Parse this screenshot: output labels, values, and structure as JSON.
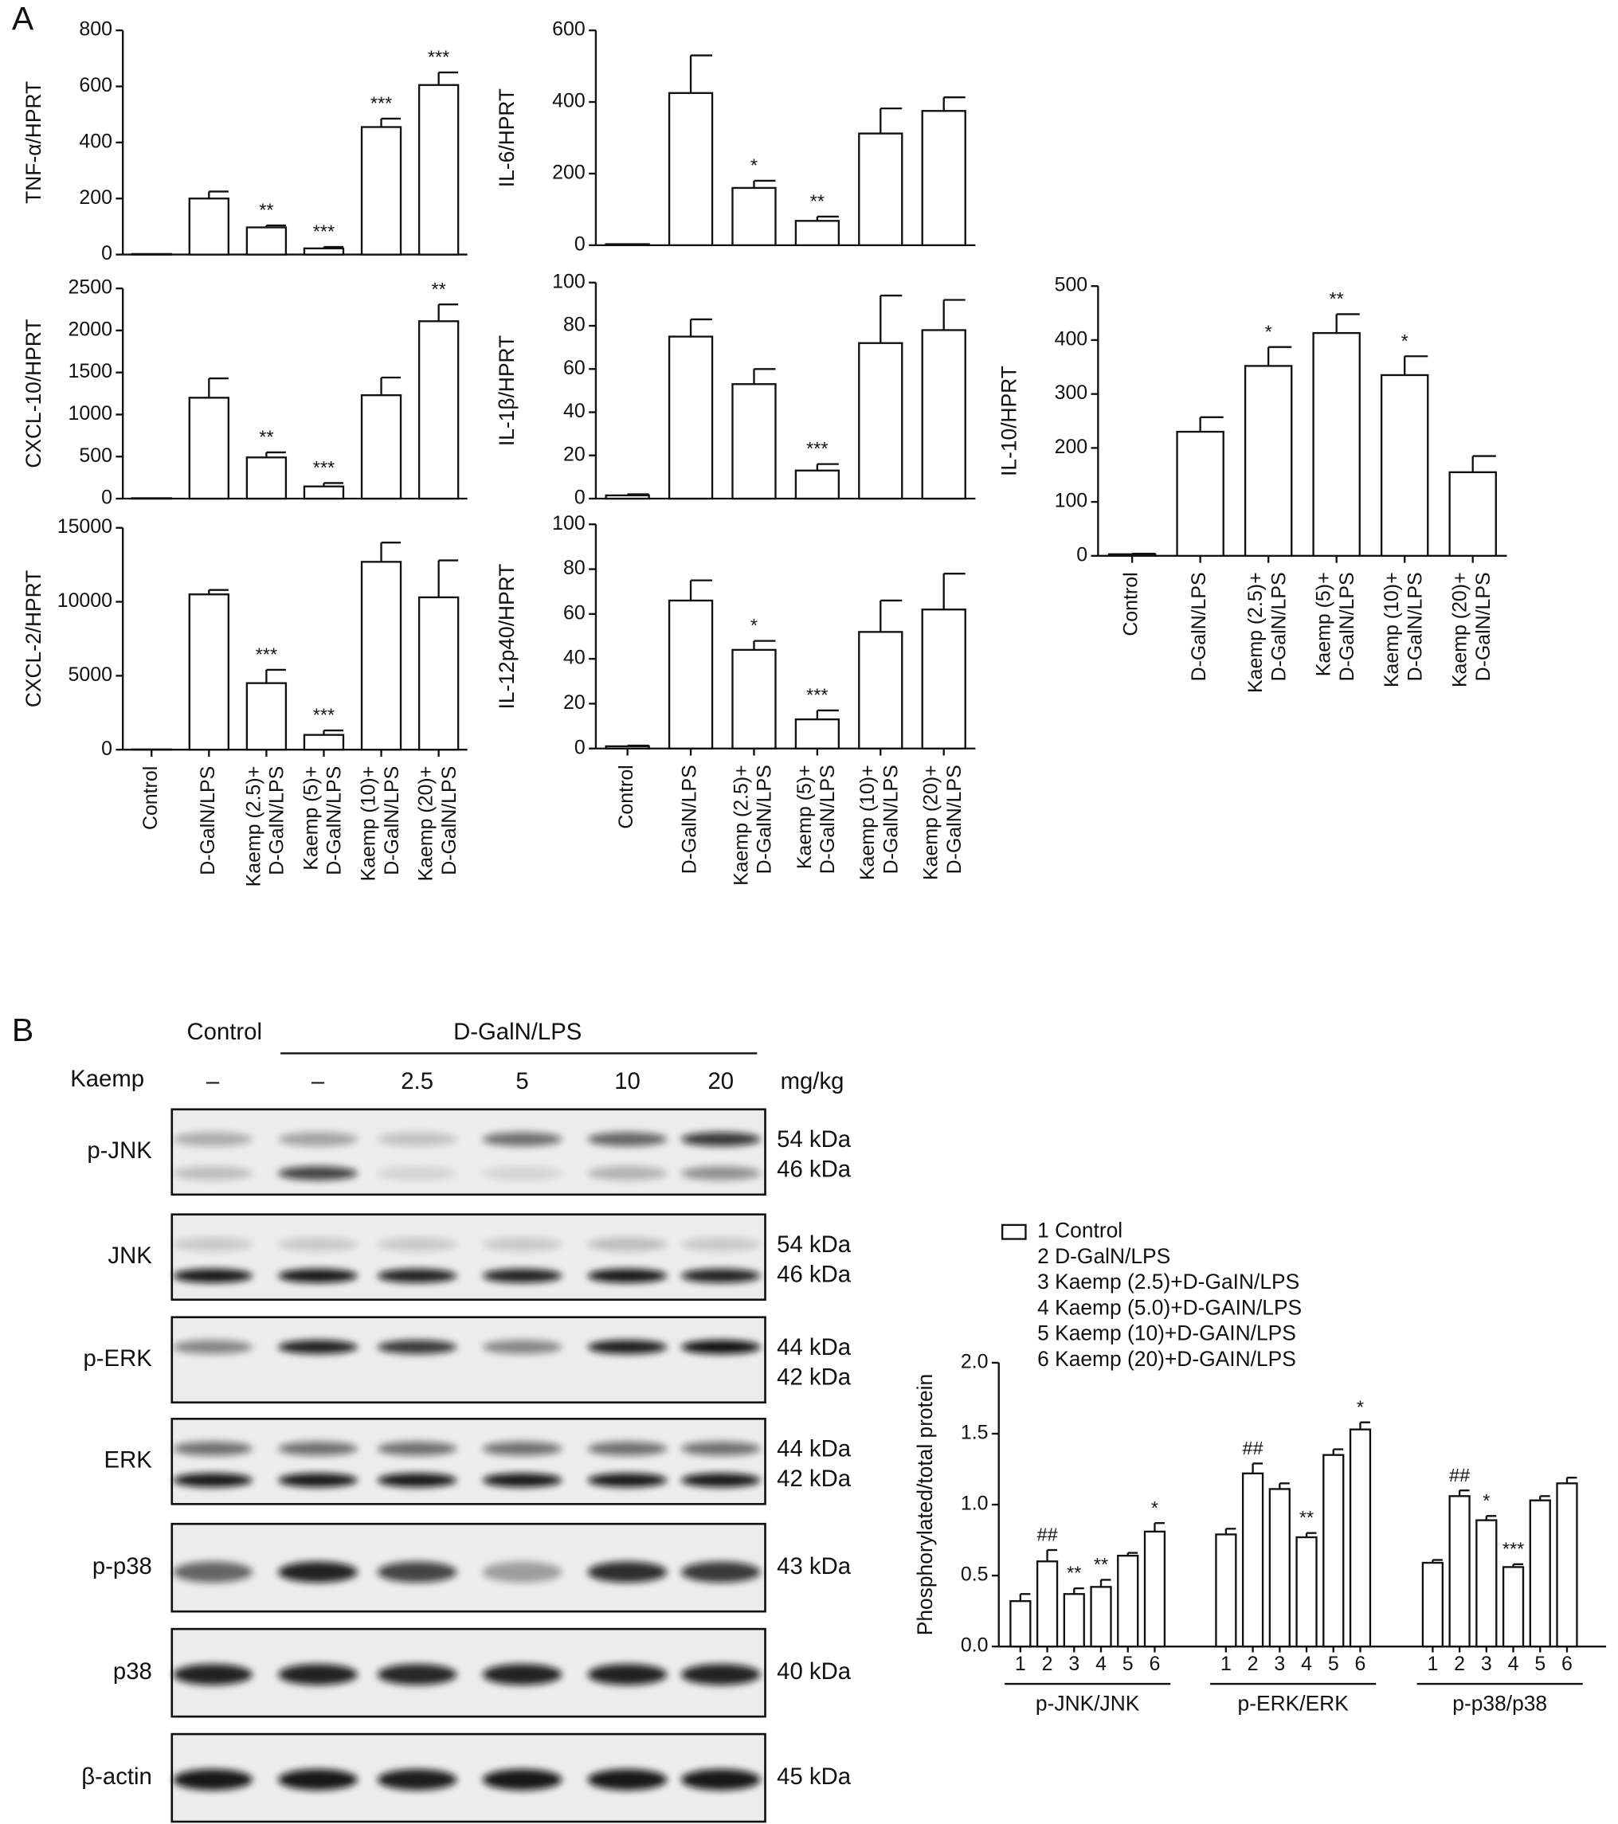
{
  "panels": [
    "A",
    "B"
  ],
  "chart_data": [
    {
      "type": "bar",
      "y_label": "TNF-α/HPRT",
      "values": [
        2,
        200,
        97,
        22,
        455,
        605
      ],
      "errors": [
        0,
        25,
        7,
        5,
        30,
        45
      ],
      "annotations": [
        null,
        null,
        "**",
        "***",
        "***",
        "***"
      ],
      "color": "#ffffff",
      "ylim": [
        0,
        800
      ],
      "yticks": [
        0,
        200,
        400,
        600,
        800
      ]
    },
    {
      "type": "bar",
      "y_label": "IL-6/HPRT",
      "values": [
        3,
        425,
        160,
        68,
        312,
        375
      ],
      "errors": [
        0,
        105,
        20,
        12,
        70,
        38
      ],
      "annotations": [
        null,
        null,
        "*",
        "**",
        null,
        null
      ],
      "color": "#ffffff",
      "ylim": [
        0,
        600
      ],
      "yticks": [
        0,
        200,
        400,
        600
      ]
    },
    {
      "type": "bar",
      "y_label": "CXCL-10/HPRT",
      "values": [
        5,
        1200,
        490,
        145,
        1230,
        2110
      ],
      "errors": [
        0,
        230,
        60,
        40,
        210,
        200
      ],
      "annotations": [
        null,
        null,
        "**",
        "***",
        null,
        "**"
      ],
      "color": "#ffffff",
      "ylim": [
        0,
        2500
      ],
      "yticks": [
        0,
        500,
        1000,
        1500,
        2000,
        2500
      ]
    },
    {
      "type": "bar",
      "y_label": "IL-1β/HPRT",
      "values": [
        1.5,
        75,
        53,
        13,
        72,
        78
      ],
      "errors": [
        0.5,
        8,
        7,
        3,
        22,
        14
      ],
      "annotations": [
        null,
        null,
        null,
        "***",
        null,
        null
      ],
      "color": "#ffffff",
      "ylim": [
        0,
        100
      ],
      "yticks": [
        0,
        20,
        40,
        60,
        80,
        100
      ]
    },
    {
      "type": "bar",
      "y_label": "IL-10/HPRT",
      "categories": [
        [
          "Control"
        ],
        [
          "D-GalN/LPS"
        ],
        [
          "Kaemp (2.5)+",
          "D-GalN/LPS"
        ],
        [
          "Kaemp (5)+",
          "D-GalN/LPS"
        ],
        [
          "Kaemp (10)+",
          "D-GalN/LPS"
        ],
        [
          "Kaemp (20)+",
          "D-GalN/LPS"
        ]
      ],
      "values": [
        3,
        230,
        352,
        413,
        335,
        155
      ],
      "errors": [
        1,
        27,
        35,
        35,
        35,
        30
      ],
      "annotations": [
        null,
        null,
        "*",
        "**",
        "*",
        null
      ],
      "color": "#ffffff",
      "ylim": [
        0,
        500
      ],
      "yticks": [
        0,
        100,
        200,
        300,
        400,
        500
      ]
    },
    {
      "type": "bar",
      "y_label": "CXCL-2/HPRT",
      "categories": [
        [
          "Control"
        ],
        [
          "D-GalN/LPS"
        ],
        [
          "Kaemp (2.5)+",
          "D-GalN/LPS"
        ],
        [
          "Kaemp (5)+",
          "D-GalN/LPS"
        ],
        [
          "Kaemp (10)+",
          "D-GalN/LPS"
        ],
        [
          "Kaemp (20)+",
          "D-GalN/LPS"
        ]
      ],
      "values": [
        20,
        10500,
        4500,
        1000,
        12700,
        10300
      ],
      "errors": [
        0,
        300,
        900,
        300,
        1300,
        2500
      ],
      "annotations": [
        null,
        null,
        "***",
        "***",
        null,
        null
      ],
      "color": "#ffffff",
      "ylim": [
        0,
        15000
      ],
      "yticks": [
        0,
        5000,
        10000,
        15000
      ]
    },
    {
      "type": "bar",
      "y_label": "IL-12p40/HPRT",
      "categories": [
        [
          "Control"
        ],
        [
          "D-GalN/LPS"
        ],
        [
          "Kaemp (2.5)+",
          "D-GalN/LPS"
        ],
        [
          "Kaemp (5)+",
          "D-GalN/LPS"
        ],
        [
          "Kaemp (10)+",
          "D-GalN/LPS"
        ],
        [
          "Kaemp (20)+",
          "D-GalN/LPS"
        ]
      ],
      "values": [
        1,
        66,
        44,
        13,
        52,
        62
      ],
      "errors": [
        0.3,
        9,
        4,
        4,
        14,
        16
      ],
      "annotations": [
        null,
        null,
        "*",
        "***",
        null,
        null
      ],
      "color": "#ffffff",
      "ylim": [
        0,
        100
      ],
      "yticks": [
        0,
        20,
        40,
        60,
        80,
        100
      ]
    },
    {
      "type": "grouped_bar",
      "y_label": "Phosphorylated/total protein",
      "groups": [
        "p-JNK/JNK",
        "p-ERK/ERK",
        "p-p38/p38"
      ],
      "bar_labels": [
        "1",
        "2",
        "3",
        "4",
        "5",
        "6"
      ],
      "series": [
        {
          "name": "1 Control",
          "color": "#ffffff",
          "values": [
            0.32,
            0.79,
            0.59
          ],
          "errors": [
            0.05,
            0.04,
            0.02
          ],
          "annotations": [
            null,
            null,
            null
          ]
        },
        {
          "name": "2 D-GalN/LPS",
          "color": "#ffffff",
          "values": [
            0.6,
            1.22,
            1.06
          ],
          "errors": [
            0.08,
            0.07,
            0.04
          ],
          "annotations": [
            "##",
            "##",
            "##"
          ]
        },
        {
          "name": "3 Kaemp (2.5)+D-GaIN/LPS",
          "color": "#ffffff",
          "values": [
            0.37,
            1.11,
            0.89
          ],
          "errors": [
            0.04,
            0.04,
            0.03
          ],
          "annotations": [
            "**",
            null,
            "*"
          ]
        },
        {
          "name": "4 Kaemp (5.0)+D-GAIN/LPS",
          "color": "#ffffff",
          "values": [
            0.42,
            0.77,
            0.56
          ],
          "errors": [
            0.05,
            0.03,
            0.02
          ],
          "annotations": [
            "**",
            "**",
            "***"
          ]
        },
        {
          "name": "5 Kaemp (10)+D-GAIN/LPS",
          "color": "#ffffff",
          "values": [
            0.64,
            1.35,
            1.03
          ],
          "errors": [
            0.02,
            0.04,
            0.03
          ],
          "annotations": [
            null,
            null,
            null
          ]
        },
        {
          "name": "6 Kaemp (20)+D-GAIN/LPS",
          "color": "#ffffff",
          "values": [
            0.81,
            1.53,
            1.15
          ],
          "errors": [
            0.06,
            0.05,
            0.04
          ],
          "annotations": [
            "*",
            "*",
            null
          ]
        }
      ],
      "ylim": [
        0,
        2
      ],
      "yticks": [
        {
          "value": 0,
          "label": "0.0"
        },
        {
          "value": 0.5,
          "label": "0.5"
        },
        {
          "value": 1,
          "label": "1.0"
        },
        {
          "value": 1.5,
          "label": "1.5"
        },
        {
          "value": 2,
          "label": "2.0"
        }
      ]
    }
  ],
  "blot": {
    "control": "Control",
    "treatment": "D-GalN/LPS",
    "dose_label": "Kaemp",
    "doses": [
      "–",
      "–",
      "2.5",
      "5",
      "10",
      "20"
    ],
    "dose_unit": "mg/kg",
    "rows": [
      {
        "label": "p-JNK",
        "kda": [
          "54 kDa",
          "46 kDa"
        ]
      },
      {
        "label": "JNK",
        "kda": [
          "54 kDa",
          "46 kDa"
        ]
      },
      {
        "label": "p-ERK",
        "kda": [
          "44 kDa",
          "42 kDa"
        ]
      },
      {
        "label": "ERK",
        "kda": [
          "44 kDa",
          "42 kDa"
        ]
      },
      {
        "label": "p-p38",
        "kda": [
          "43 kDa"
        ]
      },
      {
        "label": "p38",
        "kda": [
          "40 kDa"
        ]
      },
      {
        "label": "β-actin",
        "kda": [
          "45 kDa"
        ]
      }
    ]
  }
}
